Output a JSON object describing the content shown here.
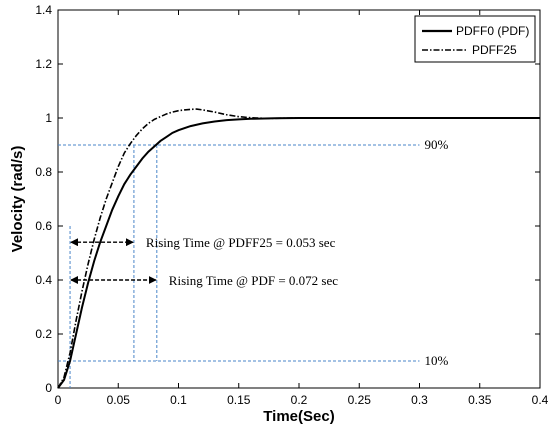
{
  "chart_data": {
    "type": "line",
    "xlabel": "Time(Sec)",
    "ylabel": "Velocity (rad/s)",
    "xlim": [
      0,
      0.4
    ],
    "ylim": [
      0,
      1.4
    ],
    "xticks": [
      "0",
      "0.05",
      "0.1",
      "0.15",
      "0.2",
      "0.25",
      "0.3",
      "0.35",
      "0.4"
    ],
    "yticks": [
      "0",
      "0.2",
      "0.4",
      "0.6",
      "0.8",
      "1",
      "1.2",
      "1.4"
    ],
    "grid": false,
    "legend_position": "top-right",
    "series": [
      {
        "name": "PDFF0 (PDF)",
        "style": "solid",
        "color": "#000000",
        "x": [
          0,
          0.005,
          0.01,
          0.015,
          0.02,
          0.025,
          0.03,
          0.035,
          0.04,
          0.045,
          0.05,
          0.055,
          0.06,
          0.065,
          0.07,
          0.075,
          0.08,
          0.085,
          0.09,
          0.095,
          0.1,
          0.11,
          0.12,
          0.13,
          0.14,
          0.15,
          0.16,
          0.18,
          0.2,
          0.25,
          0.3,
          0.35,
          0.4
        ],
        "y": [
          0,
          0.03,
          0.1,
          0.2,
          0.3,
          0.39,
          0.47,
          0.54,
          0.6,
          0.66,
          0.71,
          0.755,
          0.79,
          0.82,
          0.85,
          0.875,
          0.895,
          0.915,
          0.93,
          0.945,
          0.955,
          0.97,
          0.98,
          0.987,
          0.992,
          0.995,
          0.997,
          0.999,
          1.0,
          1.0,
          1.0,
          1.0,
          1.0
        ]
      },
      {
        "name": "PDFF25",
        "style": "dashdot",
        "color": "#000000",
        "x": [
          0,
          0.005,
          0.01,
          0.015,
          0.02,
          0.025,
          0.03,
          0.035,
          0.04,
          0.045,
          0.05,
          0.055,
          0.06,
          0.065,
          0.07,
          0.075,
          0.08,
          0.085,
          0.09,
          0.095,
          0.1,
          0.105,
          0.11,
          0.115,
          0.12,
          0.13,
          0.14,
          0.15,
          0.16,
          0.17,
          0.18,
          0.2,
          0.25,
          0.3,
          0.35,
          0.4
        ],
        "y": [
          0,
          0.04,
          0.13,
          0.25,
          0.36,
          0.46,
          0.55,
          0.63,
          0.7,
          0.76,
          0.82,
          0.87,
          0.905,
          0.935,
          0.96,
          0.98,
          0.995,
          1.005,
          1.015,
          1.022,
          1.027,
          1.03,
          1.032,
          1.033,
          1.03,
          1.022,
          1.012,
          1.005,
          1.001,
          0.999,
          0.999,
          1.0,
          1.0,
          1.0,
          1.0,
          1.0
        ]
      }
    ],
    "reference_lines": [
      {
        "label": "90%",
        "y": 0.9
      },
      {
        "label": "10%",
        "y": 0.1
      }
    ],
    "annotations": [
      {
        "text": "Rising Time @ PDFF25 = 0.053 sec",
        "x_start": 0.01,
        "x_end": 0.063,
        "y": 0.54
      },
      {
        "text": "Rising Time @ PDF = 0.072 sec",
        "x_start": 0.01,
        "x_end": 0.082,
        "y": 0.4
      }
    ]
  }
}
